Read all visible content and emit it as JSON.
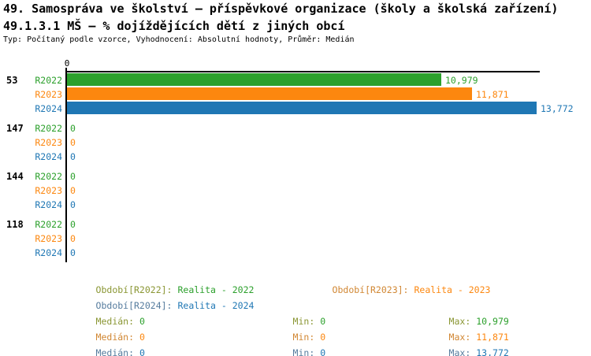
{
  "header": {
    "title_line1": "49. Samospráva ve školství – příspěvkové organizace (školy a školská zařízení)",
    "title_line2": "49.1.3.1 MŠ – % dojíždějících dětí z jiných obcí",
    "meta_line": "Typ: Počítaný podle vzorce, Vyhodnocení: Absolutní hodnoty, Průměr: Medián"
  },
  "chart_data": {
    "type": "bar",
    "orientation": "horizontal",
    "title": "49.1.3.1 MŠ – % dojíždějících dětí z jiných obcí",
    "x_axis": {
      "origin_tick_label": "0",
      "min": 0,
      "max": 13.9,
      "grid": false
    },
    "legend_position": "bottom",
    "series": [
      {
        "id": "R2022",
        "label": "R2022",
        "color": "#2CA02C"
      },
      {
        "id": "R2023",
        "label": "R2023",
        "color": "#FC870F"
      },
      {
        "id": "R2024",
        "label": "R2024",
        "color": "#1F77B4"
      }
    ],
    "categories": [
      "53",
      "147",
      "144",
      "118"
    ],
    "groups": [
      {
        "label": "53",
        "values": [
          10.979,
          11.871,
          13.772
        ],
        "value_labels": [
          "10,979",
          "11,871",
          "13,772"
        ]
      },
      {
        "label": "147",
        "values": [
          0,
          0,
          0
        ],
        "value_labels": [
          "0",
          "0",
          "0"
        ]
      },
      {
        "label": "144",
        "values": [
          0,
          0,
          0
        ],
        "value_labels": [
          "0",
          "0",
          "0"
        ]
      },
      {
        "label": "118",
        "values": [
          0,
          0,
          0
        ],
        "value_labels": [
          "0",
          "0",
          "0"
        ]
      }
    ]
  },
  "legend": {
    "entries": [
      {
        "label": "Období[R2022]:",
        "value": "Realita - 2022",
        "series": "R2022"
      },
      {
        "label": "Období[R2023]:",
        "value": "Realita - 2023",
        "series": "R2023"
      },
      {
        "label": "Období[R2024]:",
        "value": "Realita - 2024",
        "series": "R2024"
      }
    ],
    "stats": [
      {
        "series": "R2022",
        "median_label": "Medián:",
        "median": "0",
        "min_label": "Min:",
        "min": "0",
        "max_label": "Max:",
        "max": "10,979"
      },
      {
        "series": "R2023",
        "median_label": "Medián:",
        "median": "0",
        "min_label": "Min:",
        "min": "0",
        "max_label": "Max:",
        "max": "11,871"
      },
      {
        "series": "R2024",
        "median_label": "Medián:",
        "median": "0",
        "min_label": "Min:",
        "min": "0",
        "max_label": "Max:",
        "max": "13,772"
      }
    ]
  },
  "colors": {
    "background": "#FFFFFF",
    "axis": "#000000",
    "r2022": "#2CA02C",
    "r2023": "#FC870F",
    "r2024": "#1F77B4",
    "r2022_label_muted": "#8A9633",
    "r2023_label_muted": "#D18733",
    "r2024_label_muted": "#567C9E"
  }
}
